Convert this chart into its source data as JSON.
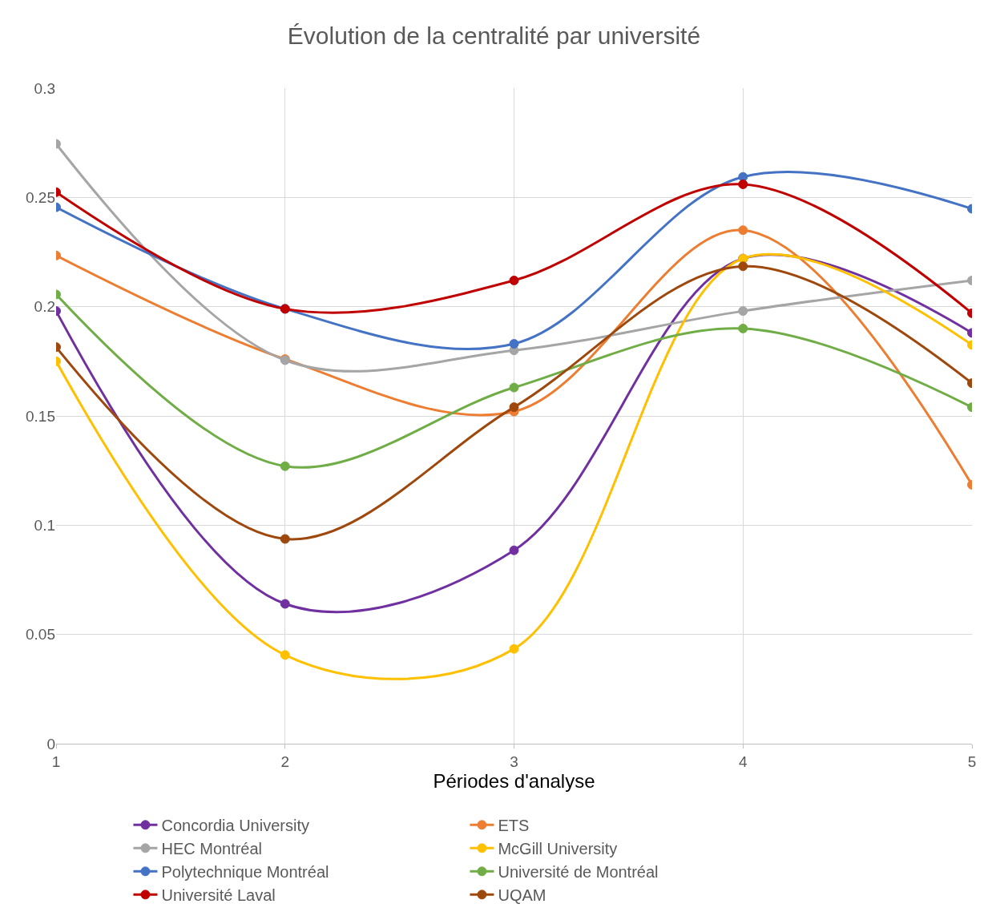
{
  "chart_data": {
    "type": "line",
    "title": "Évolution de la centralité par université",
    "xlabel": "Périodes d'analyse",
    "x": [
      1,
      2,
      3,
      4,
      5
    ],
    "xlim": [
      1,
      5
    ],
    "xticks": [
      1,
      2,
      3,
      4,
      5
    ],
    "ylim": [
      0,
      0.3
    ],
    "yticks": [
      0,
      0.05,
      0.1,
      0.15,
      0.2,
      0.25,
      0.3
    ],
    "grid": true,
    "legend": "bottom",
    "marker": "circle",
    "line_style": "solid",
    "series": [
      {
        "name": "Concordia University",
        "color": "#7030a0",
        "values": [
          0.198,
          0.064,
          0.0885,
          0.222,
          0.188
        ]
      },
      {
        "name": "ETS",
        "color": "#ed7d31",
        "values": [
          0.2234,
          0.176,
          0.152,
          0.235,
          0.1185
        ]
      },
      {
        "name": "HEC Montréal",
        "color": "#a5a5a5",
        "values": [
          0.2745,
          0.1755,
          0.18,
          0.198,
          0.212
        ]
      },
      {
        "name": "McGill University",
        "color": "#ffc000",
        "values": [
          0.175,
          0.0406,
          0.0434,
          0.222,
          0.1825
        ]
      },
      {
        "name": "Polytechnique Montréal",
        "color": "#4472c4",
        "values": [
          0.2455,
          0.199,
          0.183,
          0.2594,
          0.2448
        ]
      },
      {
        "name": "Université de Montréal",
        "color": "#70ad47",
        "values": [
          0.2056,
          0.127,
          0.163,
          0.19,
          0.154
        ]
      },
      {
        "name": "Université Laval",
        "color": "#c00000",
        "values": [
          0.2524,
          0.199,
          0.212,
          0.256,
          0.197
        ]
      },
      {
        "name": "UQAM",
        "color": "#9e480e",
        "values": [
          0.1815,
          0.0937,
          0.154,
          0.2185,
          0.165
        ]
      }
    ]
  }
}
